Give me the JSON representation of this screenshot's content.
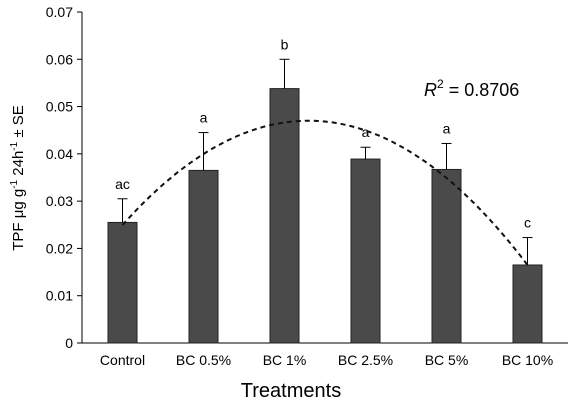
{
  "chart_data": {
    "type": "bar",
    "categories": [
      "Control",
      "BC 0.5%",
      "BC 1%",
      "BC 2.5%",
      "BC 5%",
      "BC 10%"
    ],
    "values": [
      0.0255,
      0.0365,
      0.0538,
      0.0389,
      0.0367,
      0.0165
    ],
    "error_plus": [
      0.005,
      0.008,
      0.0062,
      0.0025,
      0.0055,
      0.0058
    ],
    "significance_labels": [
      "ac",
      "a",
      "b",
      "a",
      "a",
      "c"
    ],
    "xlabel": "Treatments",
    "ylabel": {
      "base": "TPF μg g",
      "sup1": "-1",
      "mid": " 24h",
      "sup2": "-1",
      "tail": " ± SE"
    },
    "ylim": [
      0,
      0.07
    ],
    "yticks": [
      "0",
      "0.01",
      "0.02",
      "0.03",
      "0.04",
      "0.05",
      "0.06",
      "0.07"
    ],
    "trendline": {
      "type": "polynomial",
      "style": "dashed",
      "r2_label": "R",
      "r2_sup": "2",
      "r2_value": " = 0.8706"
    },
    "grid": false,
    "legend": "none",
    "bar_color": "#4a4a4a"
  }
}
